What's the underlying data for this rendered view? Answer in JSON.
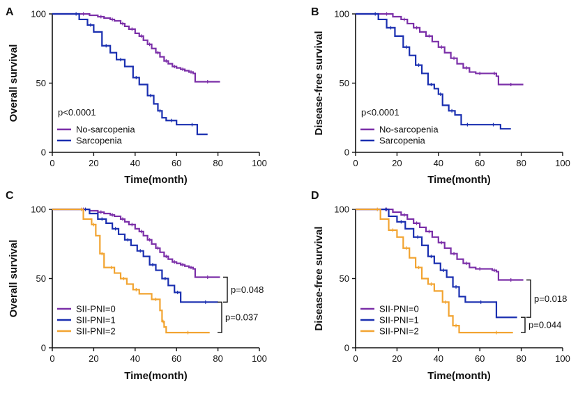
{
  "figure": {
    "colors": {
      "purple": "#7b2fa8",
      "blue": "#1a2fb0",
      "orange": "#f2a431",
      "axis": "#111111"
    }
  },
  "chart_data": [
    {
      "panel": "A",
      "type": "line",
      "step": true,
      "title": "",
      "xlabel": "Time(month)",
      "ylabel": "Overall survival",
      "xlim": [
        0,
        100
      ],
      "ylim": [
        0,
        100
      ],
      "xticks": [
        0,
        20,
        40,
        60,
        80,
        100
      ],
      "yticks": [
        0,
        50,
        100
      ],
      "annotation": "p<0.0001",
      "series": [
        {
          "name": "No-sarcopenia",
          "color": "#7b2fa8",
          "x": [
            0,
            12,
            18,
            22,
            25,
            28,
            30,
            33,
            35,
            37,
            40,
            42,
            44,
            46,
            48,
            50,
            52,
            54,
            56,
            58,
            60,
            62,
            64,
            66,
            68,
            69,
            81
          ],
          "y": [
            100,
            100,
            99,
            98,
            97,
            96,
            95,
            93,
            91,
            89,
            86,
            84,
            81,
            78,
            75,
            72,
            69,
            66,
            64,
            62,
            61,
            60,
            59,
            58,
            57,
            51,
            51
          ]
        },
        {
          "name": "Sarcopenia",
          "color": "#1a2fb0",
          "x": [
            0,
            10,
            13,
            17,
            20,
            24,
            28,
            31,
            35,
            39,
            42,
            46,
            49,
            51,
            53,
            55,
            60,
            65,
            70,
            75
          ],
          "y": [
            100,
            100,
            96,
            92,
            87,
            77,
            72,
            67,
            62,
            54,
            49,
            41,
            35,
            30,
            25,
            23,
            20,
            20,
            13,
            13
          ]
        }
      ]
    },
    {
      "panel": "B",
      "type": "line",
      "step": true,
      "title": "",
      "xlabel": "Time(month)",
      "ylabel": "Disease-free survival",
      "xlim": [
        0,
        100
      ],
      "ylim": [
        0,
        100
      ],
      "xticks": [
        0,
        20,
        40,
        60,
        80,
        100
      ],
      "yticks": [
        0,
        50,
        100
      ],
      "annotation": "p<0.0001",
      "series": [
        {
          "name": "No-sarcopenia",
          "color": "#7b2fa8",
          "x": [
            0,
            12,
            18,
            22,
            25,
            28,
            31,
            34,
            37,
            40,
            43,
            46,
            49,
            52,
            55,
            58,
            62,
            66,
            68,
            69,
            81
          ],
          "y": [
            100,
            100,
            98,
            96,
            93,
            90,
            87,
            84,
            80,
            76,
            72,
            68,
            64,
            61,
            58,
            57,
            57,
            57,
            55,
            49,
            49
          ]
        },
        {
          "name": "Sarcopenia",
          "color": "#1a2fb0",
          "x": [
            0,
            8,
            11,
            15,
            19,
            23,
            26,
            29,
            32,
            35,
            38,
            40,
            42,
            45,
            48,
            51,
            57,
            63,
            70,
            75
          ],
          "y": [
            100,
            100,
            96,
            90,
            84,
            76,
            70,
            63,
            57,
            49,
            46,
            42,
            34,
            30,
            27,
            20,
            20,
            20,
            17,
            17
          ]
        }
      ]
    },
    {
      "panel": "C",
      "type": "line",
      "step": true,
      "title": "",
      "xlabel": "Time(month)",
      "ylabel": "Overall survival",
      "xlim": [
        0,
        100
      ],
      "ylim": [
        0,
        100
      ],
      "xticks": [
        0,
        20,
        40,
        60,
        80,
        100
      ],
      "yticks": [
        0,
        50,
        100
      ],
      "pvalues": [
        "p=0.048",
        "p=0.037"
      ],
      "series": [
        {
          "name": "SII-PNI=0",
          "color": "#7b2fa8",
          "x": [
            0,
            12,
            18,
            22,
            25,
            28,
            30,
            33,
            35,
            37,
            40,
            42,
            44,
            46,
            48,
            50,
            52,
            54,
            56,
            58,
            60,
            62,
            64,
            66,
            68,
            69,
            81
          ],
          "y": [
            100,
            100,
            99,
            98,
            97,
            96,
            95,
            93,
            91,
            89,
            86,
            84,
            81,
            78,
            75,
            72,
            69,
            66,
            64,
            62,
            61,
            60,
            59,
            58,
            57,
            51,
            51
          ]
        },
        {
          "name": "SII-PNI=1",
          "color": "#1a2fb0",
          "x": [
            0,
            14,
            18,
            22,
            26,
            29,
            32,
            35,
            38,
            41,
            44,
            47,
            50,
            53,
            56,
            59,
            62,
            68,
            80
          ],
          "y": [
            100,
            100,
            97,
            93,
            90,
            86,
            82,
            78,
            74,
            70,
            66,
            60,
            56,
            50,
            45,
            40,
            33,
            33,
            33
          ]
        },
        {
          "name": "SII-PNI=2",
          "color": "#f2a431",
          "x": [
            0,
            13,
            15,
            19,
            21,
            23,
            25,
            27,
            30,
            33,
            36,
            39,
            42,
            48,
            52,
            53,
            54,
            55,
            76
          ],
          "y": [
            100,
            100,
            93,
            89,
            81,
            68,
            58,
            58,
            54,
            50,
            46,
            42,
            39,
            35,
            27,
            19,
            15,
            11,
            11
          ]
        }
      ]
    },
    {
      "panel": "D",
      "type": "line",
      "step": true,
      "title": "",
      "xlabel": "Time(month)",
      "ylabel": "Disease-free survival",
      "xlim": [
        0,
        100
      ],
      "ylim": [
        0,
        100
      ],
      "xticks": [
        0,
        20,
        40,
        60,
        80,
        100
      ],
      "yticks": [
        0,
        50,
        100
      ],
      "pvalues": [
        "p=0.018",
        "p=0.044"
      ],
      "series": [
        {
          "name": "SII-PNI=0",
          "color": "#7b2fa8",
          "x": [
            0,
            12,
            18,
            22,
            25,
            28,
            31,
            34,
            37,
            40,
            43,
            46,
            49,
            52,
            55,
            58,
            62,
            66,
            68,
            69,
            81
          ],
          "y": [
            100,
            100,
            98,
            96,
            93,
            90,
            87,
            84,
            80,
            76,
            72,
            68,
            64,
            61,
            58,
            57,
            57,
            56,
            55,
            49,
            49
          ]
        },
        {
          "name": "SII-PNI=1",
          "color": "#1a2fb0",
          "x": [
            0,
            13,
            16,
            20,
            24,
            28,
            32,
            35,
            38,
            41,
            44,
            47,
            50,
            53,
            68,
            78
          ],
          "y": [
            100,
            100,
            95,
            91,
            86,
            80,
            74,
            66,
            61,
            56,
            51,
            44,
            37,
            33,
            22,
            22
          ]
        },
        {
          "name": "SII-PNI=2",
          "color": "#f2a431",
          "x": [
            0,
            9,
            12,
            16,
            20,
            23,
            26,
            29,
            32,
            35,
            38,
            42,
            45,
            47,
            50,
            60,
            76
          ],
          "y": [
            100,
            100,
            93,
            85,
            80,
            72,
            65,
            58,
            50,
            46,
            41,
            33,
            23,
            16,
            11,
            11,
            11
          ]
        }
      ]
    }
  ]
}
